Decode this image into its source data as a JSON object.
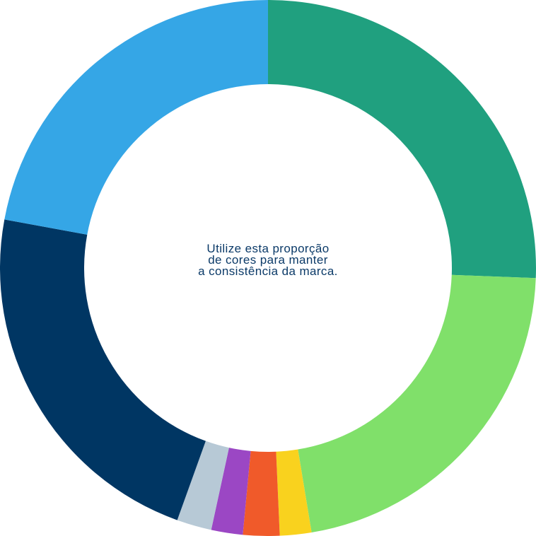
{
  "chart_data": {
    "type": "pie",
    "variant": "donut",
    "title": "",
    "legend": "none",
    "center_note": [
      "Utilize esta proporção",
      "de cores para manter",
      "a consistência da marca."
    ],
    "slices": [
      {
        "value": 25.6,
        "color": "#20a07f"
      },
      {
        "value": 21.8,
        "color": "#80e06a"
      },
      {
        "value": 1.9,
        "color": "#f9d21e"
      },
      {
        "value": 2.2,
        "color": "#f05a2a"
      },
      {
        "value": 1.9,
        "color": "#9b47c4"
      },
      {
        "value": 2.1,
        "color": "#b7c9d6"
      },
      {
        "value": 22.4,
        "color": "#003663"
      },
      {
        "value": 22.1,
        "color": "#35a6e6"
      }
    ]
  }
}
